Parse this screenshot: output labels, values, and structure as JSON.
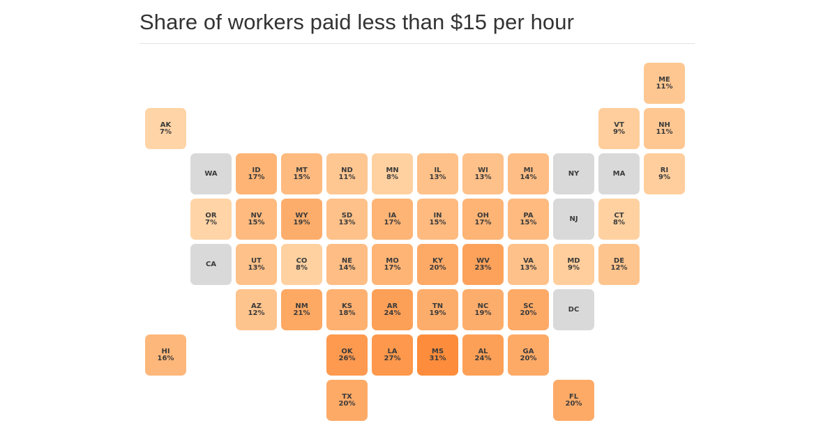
{
  "title": "Share of workers paid less than $15 per hour",
  "colors": {
    "no_data": "#d9d9d9",
    "scale": [
      "#ffd4a6",
      "#fdad6b",
      "#fd8d3c"
    ]
  },
  "states": [
    {
      "abbr": "ME",
      "pct": "11%",
      "value": 11,
      "row": 0,
      "col": 11
    },
    {
      "abbr": "AK",
      "pct": "7%",
      "value": 7,
      "row": 1,
      "col": 0
    },
    {
      "abbr": "VT",
      "pct": "9%",
      "value": 9,
      "row": 1,
      "col": 10
    },
    {
      "abbr": "NH",
      "pct": "11%",
      "value": 11,
      "row": 1,
      "col": 11
    },
    {
      "abbr": "WA",
      "pct": "",
      "value": null,
      "row": 2,
      "col": 1
    },
    {
      "abbr": "ID",
      "pct": "17%",
      "value": 17,
      "row": 2,
      "col": 2
    },
    {
      "abbr": "MT",
      "pct": "15%",
      "value": 15,
      "row": 2,
      "col": 3
    },
    {
      "abbr": "ND",
      "pct": "11%",
      "value": 11,
      "row": 2,
      "col": 4
    },
    {
      "abbr": "MN",
      "pct": "8%",
      "value": 8,
      "row": 2,
      "col": 5
    },
    {
      "abbr": "IL",
      "pct": "13%",
      "value": 13,
      "row": 2,
      "col": 6
    },
    {
      "abbr": "WI",
      "pct": "13%",
      "value": 13,
      "row": 2,
      "col": 7
    },
    {
      "abbr": "MI",
      "pct": "14%",
      "value": 14,
      "row": 2,
      "col": 8
    },
    {
      "abbr": "NY",
      "pct": "",
      "value": null,
      "row": 2,
      "col": 9
    },
    {
      "abbr": "MA",
      "pct": "",
      "value": null,
      "row": 2,
      "col": 10
    },
    {
      "abbr": "RI",
      "pct": "9%",
      "value": 9,
      "row": 2,
      "col": 11
    },
    {
      "abbr": "OR",
      "pct": "7%",
      "value": 7,
      "row": 3,
      "col": 1
    },
    {
      "abbr": "NV",
      "pct": "15%",
      "value": 15,
      "row": 3,
      "col": 2
    },
    {
      "abbr": "WY",
      "pct": "19%",
      "value": 19,
      "row": 3,
      "col": 3
    },
    {
      "abbr": "SD",
      "pct": "13%",
      "value": 13,
      "row": 3,
      "col": 4
    },
    {
      "abbr": "IA",
      "pct": "17%",
      "value": 17,
      "row": 3,
      "col": 5
    },
    {
      "abbr": "IN",
      "pct": "15%",
      "value": 15,
      "row": 3,
      "col": 6
    },
    {
      "abbr": "OH",
      "pct": "17%",
      "value": 17,
      "row": 3,
      "col": 7
    },
    {
      "abbr": "PA",
      "pct": "15%",
      "value": 15,
      "row": 3,
      "col": 8
    },
    {
      "abbr": "NJ",
      "pct": "",
      "value": null,
      "row": 3,
      "col": 9
    },
    {
      "abbr": "CT",
      "pct": "8%",
      "value": 8,
      "row": 3,
      "col": 10
    },
    {
      "abbr": "CA",
      "pct": "",
      "value": null,
      "row": 4,
      "col": 1
    },
    {
      "abbr": "UT",
      "pct": "13%",
      "value": 13,
      "row": 4,
      "col": 2
    },
    {
      "abbr": "CO",
      "pct": "8%",
      "value": 8,
      "row": 4,
      "col": 3
    },
    {
      "abbr": "NE",
      "pct": "14%",
      "value": 14,
      "row": 4,
      "col": 4
    },
    {
      "abbr": "MO",
      "pct": "17%",
      "value": 17,
      "row": 4,
      "col": 5
    },
    {
      "abbr": "KY",
      "pct": "20%",
      "value": 20,
      "row": 4,
      "col": 6
    },
    {
      "abbr": "WV",
      "pct": "23%",
      "value": 23,
      "row": 4,
      "col": 7
    },
    {
      "abbr": "VA",
      "pct": "13%",
      "value": 13,
      "row": 4,
      "col": 8
    },
    {
      "abbr": "MD",
      "pct": "9%",
      "value": 9,
      "row": 4,
      "col": 9
    },
    {
      "abbr": "DE",
      "pct": "12%",
      "value": 12,
      "row": 4,
      "col": 10
    },
    {
      "abbr": "AZ",
      "pct": "12%",
      "value": 12,
      "row": 5,
      "col": 2
    },
    {
      "abbr": "NM",
      "pct": "21%",
      "value": 21,
      "row": 5,
      "col": 3
    },
    {
      "abbr": "KS",
      "pct": "18%",
      "value": 18,
      "row": 5,
      "col": 4
    },
    {
      "abbr": "AR",
      "pct": "24%",
      "value": 24,
      "row": 5,
      "col": 5
    },
    {
      "abbr": "TN",
      "pct": "19%",
      "value": 19,
      "row": 5,
      "col": 6
    },
    {
      "abbr": "NC",
      "pct": "19%",
      "value": 19,
      "row": 5,
      "col": 7
    },
    {
      "abbr": "SC",
      "pct": "20%",
      "value": 20,
      "row": 5,
      "col": 8
    },
    {
      "abbr": "DC",
      "pct": "",
      "value": null,
      "row": 5,
      "col": 9
    },
    {
      "abbr": "HI",
      "pct": "16%",
      "value": 16,
      "row": 6,
      "col": 0
    },
    {
      "abbr": "OK",
      "pct": "26%",
      "value": 26,
      "row": 6,
      "col": 4
    },
    {
      "abbr": "LA",
      "pct": "27%",
      "value": 27,
      "row": 6,
      "col": 5
    },
    {
      "abbr": "MS",
      "pct": "31%",
      "value": 31,
      "row": 6,
      "col": 6
    },
    {
      "abbr": "AL",
      "pct": "24%",
      "value": 24,
      "row": 6,
      "col": 7
    },
    {
      "abbr": "GA",
      "pct": "20%",
      "value": 20,
      "row": 6,
      "col": 8
    },
    {
      "abbr": "TX",
      "pct": "20%",
      "value": 20,
      "row": 7,
      "col": 4
    },
    {
      "abbr": "FL",
      "pct": "20%",
      "value": 20,
      "row": 7,
      "col": 9
    }
  ]
}
